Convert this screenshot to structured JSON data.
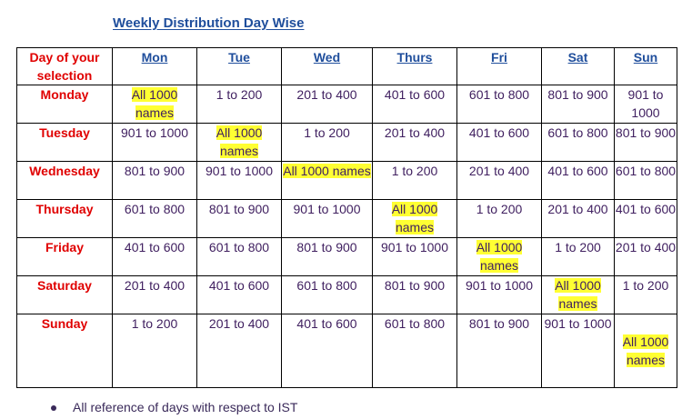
{
  "title": "Weekly Distribution Day Wise",
  "table": {
    "header_day": "Day of your selection",
    "columns": [
      "Mon",
      "Tue",
      "Wed",
      "Thurs",
      "Fri",
      "Sat",
      "Sun"
    ],
    "rows": [
      {
        "day": "Monday",
        "cells": [
          "All 1000 names",
          "1 to 200",
          "201 to 400",
          "401 to 600",
          "601 to 800",
          "801 to 900",
          "901 to 1000"
        ]
      },
      {
        "day": "Tuesday",
        "cells": [
          "901 to 1000",
          "All 1000 names",
          "1 to 200",
          "201 to 400",
          "401 to 600",
          "601 to 800",
          "801 to 900"
        ]
      },
      {
        "day": "Wednesday",
        "cells": [
          "801 to 900",
          "901 to 1000",
          "All 1000 names",
          "1 to 200",
          "201 to 400",
          "401 to 600",
          "601 to 800"
        ]
      },
      {
        "day": "Thursday",
        "cells": [
          "601 to 800",
          "801 to 900",
          "901 to 1000",
          "All 1000 names",
          "1 to 200",
          "201 to 400",
          "401 to 600"
        ]
      },
      {
        "day": "Friday",
        "cells": [
          "401 to 600",
          "601 to 800",
          "801 to 900",
          "901 to 1000",
          "All 1000 names",
          "1 to 200",
          "201 to 400"
        ]
      },
      {
        "day": "Saturday",
        "cells": [
          "201 to 400",
          "401 to 600",
          "601 to 800",
          "801 to 900",
          "901 to 1000",
          "All 1000 names",
          "1 to 200"
        ]
      },
      {
        "day": "Sunday",
        "cells": [
          "1 to 200",
          "201 to 400",
          "401 to 600",
          "601 to 800",
          "801 to 900",
          "901 to 1000",
          "All 1000 names"
        ]
      }
    ]
  },
  "note": "All reference of days with respect to IST",
  "colors": {
    "highlight": "#ffff33",
    "day": "#e00000",
    "link": "#1f4e9c"
  }
}
